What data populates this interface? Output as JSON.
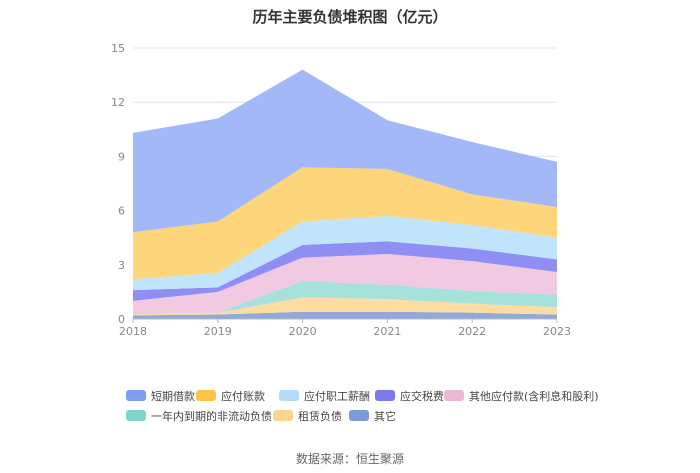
{
  "chart_data": {
    "type": "area",
    "stacked": true,
    "title": "历年主要负债堆积图（亿元）",
    "categories": [
      "2018",
      "2019",
      "2020",
      "2021",
      "2022",
      "2023"
    ],
    "ylim": [
      0,
      15
    ],
    "yticks": [
      "0",
      "3",
      "6",
      "9",
      "12",
      "15"
    ],
    "grid": true,
    "legend_position": "bottom",
    "series": [
      {
        "name": "其它",
        "color": "#8fa9db",
        "values": [
          0.2,
          0.25,
          0.4,
          0.4,
          0.35,
          0.25
        ]
      },
      {
        "name": "租赁负债",
        "color": "#fcdca0",
        "values": [
          0.05,
          0.1,
          0.8,
          0.7,
          0.5,
          0.4
        ]
      },
      {
        "name": "一年内到期的非流动负债",
        "color": "#a6e1dc",
        "values": [
          0.0,
          0.0,
          0.9,
          0.8,
          0.7,
          0.7
        ]
      },
      {
        "name": "其他应付款(含利息和股利)",
        "color": "#f1c9e0",
        "values": [
          0.75,
          1.15,
          1.3,
          1.7,
          1.65,
          1.25
        ]
      },
      {
        "name": "应交税费",
        "color": "#8f8ef5",
        "values": [
          0.6,
          0.25,
          0.7,
          0.7,
          0.7,
          0.7
        ]
      },
      {
        "name": "应付职工薪酬",
        "color": "#bfe4fb",
        "values": [
          0.6,
          0.8,
          1.3,
          1.4,
          1.3,
          1.2
        ]
      },
      {
        "name": "应付账款",
        "color": "#fdd57a",
        "values": [
          2.6,
          2.85,
          3.0,
          2.6,
          1.7,
          1.7
        ]
      },
      {
        "name": "短期借款",
        "color": "#a3b8f8",
        "values": [
          5.5,
          5.7,
          5.4,
          2.7,
          2.9,
          2.5
        ]
      }
    ],
    "legend_order": [
      "短期借款",
      "应付账款",
      "应付职工薪酬",
      "应交税费",
      "其他应付款(含利息和股利)",
      "一年内到期的非流动负债",
      "租赁负债",
      "其它"
    ],
    "legend_colors": {
      "短期借款": "#7f9ef3",
      "应付账款": "#fbc54a",
      "应付职工薪酬": "#b0dcf9",
      "应交税费": "#7b79f0",
      "其他应付款(含利息和股利)": "#edb7d8",
      "一年内到期的非流动负债": "#7fd4cc",
      "租赁负债": "#fbd58e",
      "其它": "#7b9bd6"
    }
  },
  "source_label": "数据来源：恒生聚源"
}
